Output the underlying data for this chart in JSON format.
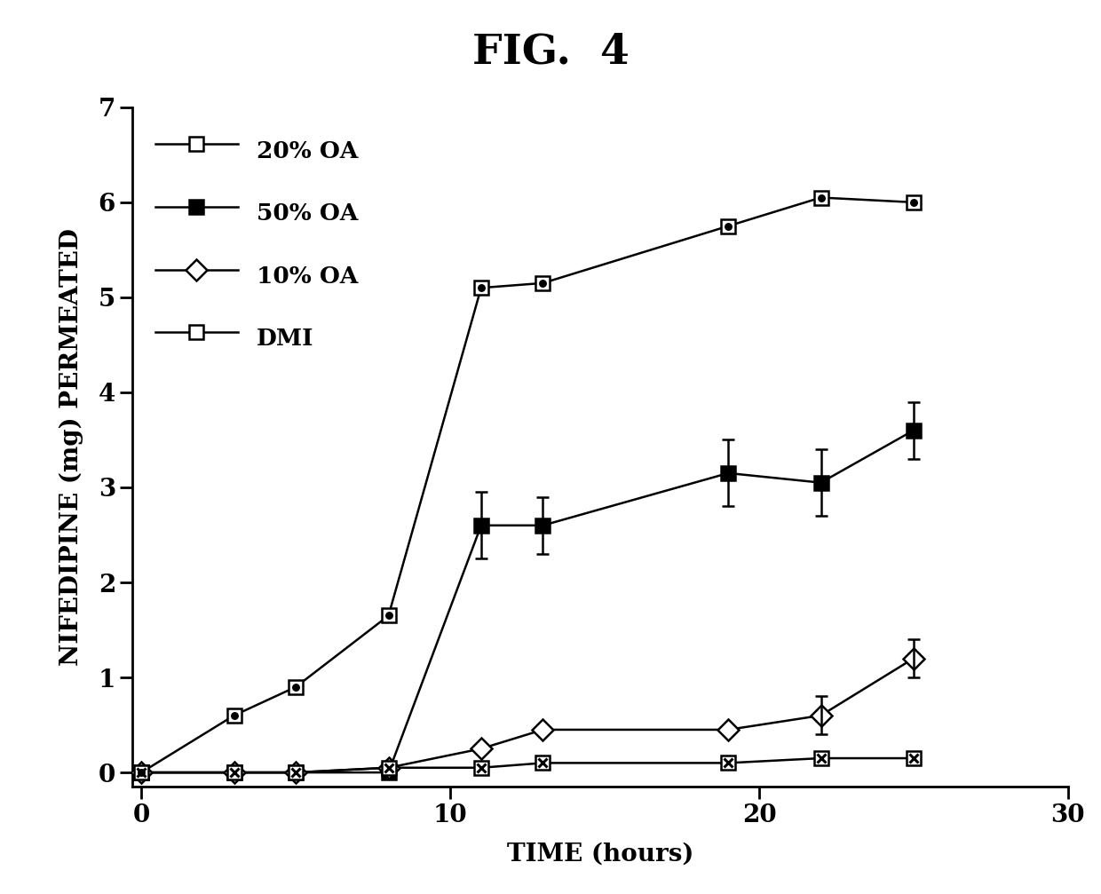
{
  "title": "FIG.  4",
  "xlabel": "TIME (hours)",
  "ylabel": "NIFEDIPINE (mg) PERMEATED",
  "xlim": [
    -0.3,
    30
  ],
  "ylim": [
    -0.15,
    7
  ],
  "xticks": [
    0,
    10,
    20,
    30
  ],
  "yticks": [
    0,
    1,
    2,
    3,
    4,
    5,
    6,
    7
  ],
  "series_20OA": {
    "x": [
      0,
      3,
      5,
      8,
      11,
      13,
      19,
      22,
      25
    ],
    "y": [
      0.0,
      0.6,
      0.9,
      1.65,
      5.1,
      5.15,
      5.75,
      6.05,
      6.0
    ],
    "yerr": [
      0,
      0,
      0,
      0,
      0,
      0,
      0,
      0,
      0
    ],
    "label": "20% OA"
  },
  "series_50OA": {
    "x": [
      0,
      3,
      5,
      8,
      11,
      13,
      19,
      22,
      25
    ],
    "y": [
      0.0,
      0.0,
      0.0,
      0.0,
      2.6,
      2.6,
      3.15,
      3.05,
      3.6
    ],
    "yerr": [
      0,
      0,
      0,
      0,
      0.35,
      0.3,
      0.35,
      0.35,
      0.3
    ],
    "label": "50% OA"
  },
  "series_10OA": {
    "x": [
      0,
      3,
      5,
      8,
      11,
      13,
      19,
      22,
      25
    ],
    "y": [
      0.0,
      0.0,
      0.0,
      0.05,
      0.25,
      0.45,
      0.45,
      0.6,
      1.2
    ],
    "yerr": [
      0,
      0,
      0,
      0,
      0,
      0,
      0,
      0.2,
      0.2
    ],
    "label": "10% OA"
  },
  "series_DMI": {
    "x": [
      0,
      3,
      5,
      8,
      11,
      13,
      19,
      22,
      25
    ],
    "y": [
      0.0,
      0.0,
      0.0,
      0.05,
      0.05,
      0.1,
      0.1,
      0.15,
      0.15
    ],
    "yerr": [
      0,
      0,
      0,
      0,
      0,
      0,
      0,
      0,
      0
    ],
    "label": "DMI"
  },
  "color": "#000000",
  "linewidth": 1.8,
  "marker_size": 12,
  "background_color": "#ffffff",
  "title_fontsize": 34,
  "label_fontsize": 20,
  "tick_fontsize": 20,
  "legend_fontsize": 19
}
